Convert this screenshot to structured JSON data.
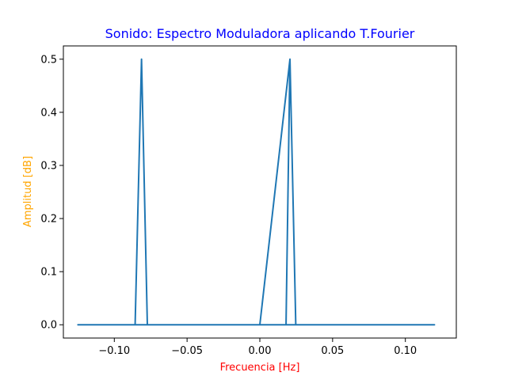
{
  "chart_data": {
    "type": "line",
    "title": "Sonido: Espectro Moduladora aplicando T.Fourier",
    "xlabel": "Frecuencia [Hz]",
    "ylabel": "Amplitud [dB]",
    "xlim": [
      -0.135,
      0.135
    ],
    "ylim": [
      -0.025,
      0.525
    ],
    "xticks": [
      -0.1,
      -0.05,
      0.0,
      0.05,
      0.1
    ],
    "xtick_labels": [
      "−0.10",
      "−0.05",
      "0.00",
      "0.05",
      "0.10"
    ],
    "yticks": [
      0.0,
      0.1,
      0.2,
      0.3,
      0.4,
      0.5
    ],
    "ytick_labels": [
      "0.0",
      "0.1",
      "0.2",
      "0.3",
      "0.4",
      "0.5"
    ],
    "grid": false,
    "series": [
      {
        "color": "#1f77b4",
        "x": [
          0.0,
          0.0207,
          0.0247,
          0.06,
          0.12,
          -0.125,
          -0.09,
          -0.0857,
          -0.0813,
          -0.0773,
          -0.04,
          -0.007,
          0.0,
          0.018,
          0.0207
        ],
        "y": [
          0.0,
          0.5,
          0.0,
          0.0,
          0.0,
          0.0,
          0.0,
          0.0,
          0.5,
          0.0,
          0.0,
          0.0,
          0.0,
          0.0,
          0.5
        ]
      }
    ],
    "colors": {
      "title": "#0000ff",
      "xlabel": "#ff0000",
      "ylabel": "#ffa500",
      "line": "#1f77b4"
    }
  }
}
